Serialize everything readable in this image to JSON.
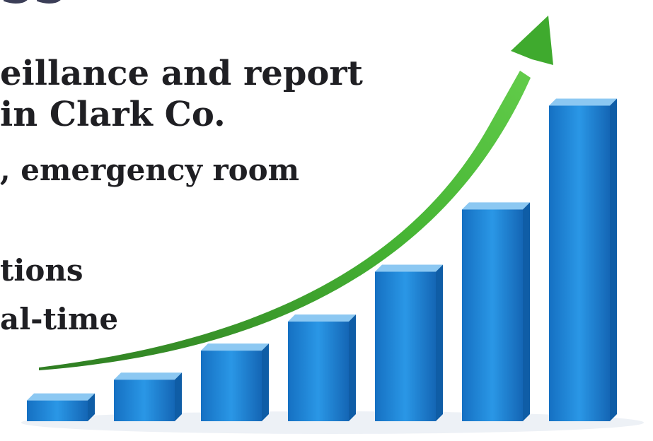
{
  "slide": {
    "title_fragment": "SS",
    "lines": [
      "eillance and report",
      "in Clark Co.",
      ", emergency room",
      "tions",
      "al-time"
    ]
  },
  "chart_data": {
    "type": "bar",
    "categories": [
      "",
      "",
      "",
      "",
      "",
      "",
      ""
    ],
    "values": [
      5,
      10,
      17,
      24,
      36,
      51,
      76
    ],
    "ylim": [
      0,
      80
    ],
    "grid": false,
    "trend_arrow": true,
    "colors": {
      "bar": "#1e88d8",
      "bar_top": "#8cc8f2",
      "arrow": "#3faa2e"
    }
  }
}
